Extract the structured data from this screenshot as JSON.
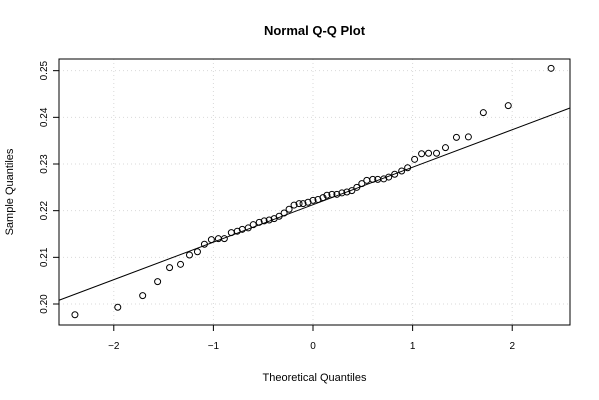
{
  "chart_data": {
    "type": "scatter",
    "title": "Normal Q-Q Plot",
    "xlabel": "Theoretical Quantiles",
    "ylabel": "Sample Quantiles",
    "xlim": [
      -2.55,
      2.58
    ],
    "ylim": [
      0.1955,
      0.2525
    ],
    "x_ticks": [
      -2,
      -1,
      0,
      1,
      2
    ],
    "x_tick_labels": [
      "−2",
      "−1",
      "0",
      "1",
      "2"
    ],
    "y_ticks": [
      0.2,
      0.21,
      0.22,
      0.23,
      0.24,
      0.25
    ],
    "y_tick_labels": [
      "0.20",
      "0.21",
      "0.22",
      "0.23",
      "0.24",
      "0.25"
    ],
    "grid": true,
    "points": {
      "x": [
        -2.39,
        -1.96,
        -1.71,
        -1.56,
        -1.44,
        -1.33,
        -1.24,
        -1.16,
        -1.09,
        -1.02,
        -0.95,
        -0.89,
        -0.82,
        -0.76,
        -0.71,
        -0.65,
        -0.6,
        -0.54,
        -0.49,
        -0.44,
        -0.39,
        -0.34,
        -0.29,
        -0.24,
        -0.19,
        -0.14,
        -0.1,
        -0.05,
        0.0,
        0.05,
        0.1,
        0.14,
        0.19,
        0.24,
        0.29,
        0.34,
        0.39,
        0.44,
        0.49,
        0.54,
        0.6,
        0.65,
        0.71,
        0.76,
        0.82,
        0.89,
        0.95,
        1.02,
        1.09,
        1.16,
        1.24,
        1.33,
        1.44,
        1.56,
        1.71,
        1.96,
        2.39
      ],
      "y": [
        0.1977,
        0.1993,
        0.2018,
        0.2048,
        0.2078,
        0.2085,
        0.2105,
        0.2112,
        0.2128,
        0.2138,
        0.214,
        0.214,
        0.2153,
        0.2156,
        0.216,
        0.2163,
        0.217,
        0.2175,
        0.2178,
        0.218,
        0.2183,
        0.2188,
        0.2195,
        0.2203,
        0.2212,
        0.2215,
        0.2215,
        0.2218,
        0.2222,
        0.2224,
        0.2228,
        0.2233,
        0.2235,
        0.2235,
        0.2238,
        0.224,
        0.2243,
        0.225,
        0.2258,
        0.2265,
        0.2267,
        0.2267,
        0.2268,
        0.2272,
        0.2278,
        0.2285,
        0.2292,
        0.231,
        0.2322,
        0.2323,
        0.2323,
        0.2335,
        0.2357,
        0.2358,
        0.241,
        0.2425,
        0.2505
      ]
    },
    "reference_line": {
      "x": [
        -2.55,
        2.58
      ],
      "y": [
        0.2008,
        0.242
      ]
    }
  }
}
